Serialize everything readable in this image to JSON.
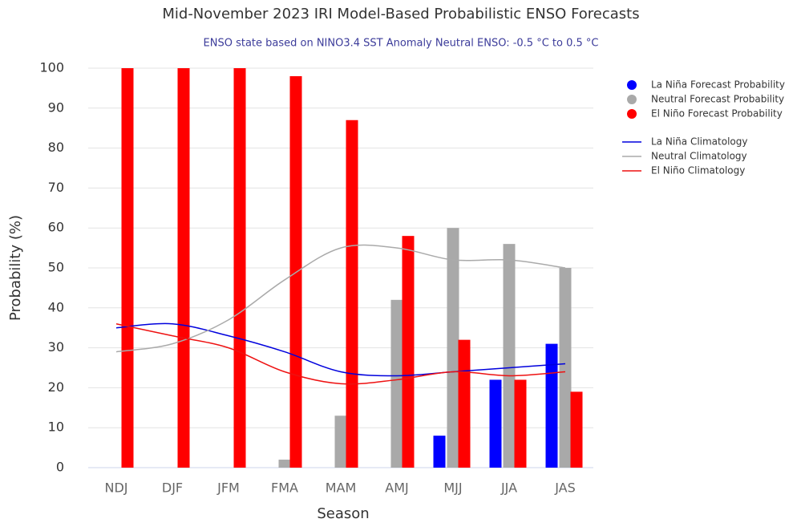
{
  "chart_data": {
    "type": "bar",
    "title": "Mid-November 2023 IRI Model-Based Probabilistic ENSO Forecasts",
    "subtitle": "ENSO state based on NINO3.4 SST Anomaly Neutral ENSO: -0.5 °C to 0.5 °C",
    "x_label": "Season",
    "y_label": "Probability (%)",
    "categories": [
      "NDJ",
      "DJF",
      "JFM",
      "FMA",
      "MAM",
      "AMJ",
      "MJJ",
      "JJA",
      "JAS"
    ],
    "ylim": [
      0,
      100
    ],
    "yticks": [
      0,
      10,
      20,
      30,
      40,
      50,
      60,
      70,
      80,
      90,
      100
    ],
    "grid": true,
    "series": [
      {
        "name": "La Niña Forecast Probability",
        "type": "bar",
        "color": "#0000ff",
        "values": [
          0,
          0,
          0,
          0,
          0,
          0,
          8,
          22,
          31
        ]
      },
      {
        "name": "Neutral Forecast Probability",
        "type": "bar",
        "color": "#a9a9a9",
        "values": [
          0,
          0,
          0,
          2,
          13,
          42,
          60,
          56,
          50
        ]
      },
      {
        "name": "El Niño Forecast Probability",
        "type": "bar",
        "color": "#ff0000",
        "values": [
          100,
          100,
          100,
          98,
          87,
          58,
          32,
          22,
          19
        ]
      },
      {
        "name": "La Niña Climatology",
        "type": "line",
        "color": "#0000dd",
        "values": [
          35,
          36,
          33,
          29,
          24,
          23,
          24,
          25,
          26
        ]
      },
      {
        "name": "Neutral Climatology",
        "type": "line",
        "color": "#aaaaaa",
        "values": [
          29,
          31,
          37,
          47,
          55,
          55,
          52,
          52,
          50
        ]
      },
      {
        "name": "El Niño Climatology",
        "type": "line",
        "color": "#ee1111",
        "values": [
          36,
          33,
          30,
          24,
          21,
          22,
          24,
          23,
          24
        ]
      }
    ]
  }
}
